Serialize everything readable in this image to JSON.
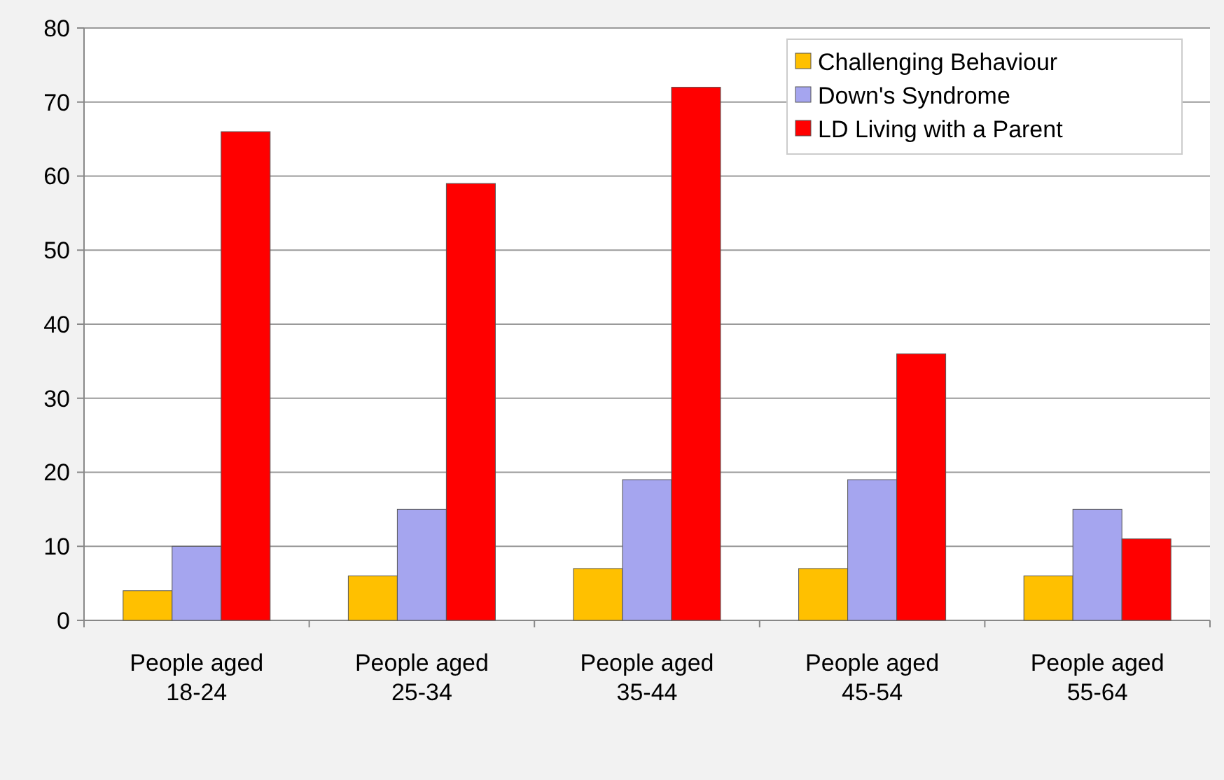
{
  "chart_data": {
    "type": "bar",
    "categories": [
      "People aged 18-24",
      "People aged 25-34",
      "People aged 35-44",
      "People aged 45-54",
      "People aged 55-64"
    ],
    "series": [
      {
        "name": "Challenging Behaviour",
        "color": "#ffc000",
        "values": [
          4,
          6,
          7,
          7,
          6
        ]
      },
      {
        "name": "Down's Syndrome",
        "color": "#a5a5ef",
        "values": [
          10,
          15,
          19,
          19,
          15
        ]
      },
      {
        "name": "LD Living with a Parent",
        "color": "#ff0000",
        "values": [
          66,
          59,
          72,
          36,
          11
        ]
      }
    ],
    "ylim": [
      0,
      80
    ],
    "yticks": [
      0,
      10,
      20,
      30,
      40,
      50,
      60,
      70,
      80
    ],
    "grid": "y",
    "legend": "top right"
  }
}
